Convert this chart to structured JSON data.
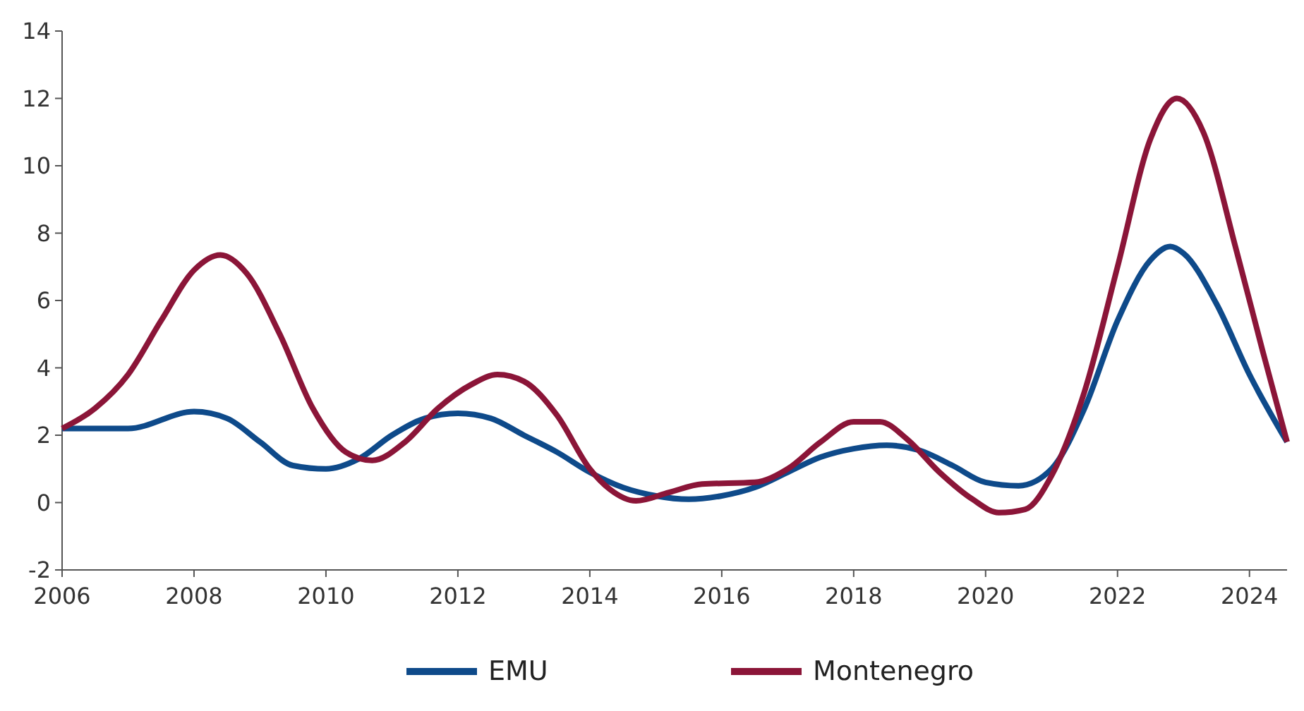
{
  "chart_data": {
    "type": "line",
    "xlim": [
      2006,
      2024.57
    ],
    "xticks": [
      2006,
      2008,
      2010,
      2012,
      2014,
      2016,
      2018,
      2020,
      2022,
      2024
    ],
    "ylim": [
      -2,
      14
    ],
    "yticks": [
      -2,
      0,
      2,
      4,
      6,
      8,
      10,
      12,
      14
    ],
    "grid": false,
    "legend": "bottom",
    "marker": "none",
    "line_style": "solid",
    "series": [
      {
        "name": "EMU",
        "color": "#0e4a8a",
        "x": [
          2006,
          2007,
          2008,
          2008.5,
          2009,
          2009.5,
          2010,
          2010.5,
          2011,
          2011.5,
          2012,
          2012.5,
          2013,
          2013.5,
          2014,
          2014.5,
          2015,
          2015.5,
          2016,
          2016.5,
          2017,
          2017.5,
          2018,
          2018.5,
          2019,
          2019.5,
          2020,
          2020.5,
          2021,
          2021.5,
          2022,
          2022.5,
          2022.8,
          2023,
          2023.5,
          2024,
          2024.57
        ],
        "values": [
          2.2,
          2.2,
          2.7,
          2.5,
          1.8,
          1.1,
          1.0,
          1.3,
          2.0,
          2.5,
          2.65,
          2.5,
          2.0,
          1.5,
          0.9,
          0.45,
          0.2,
          0.1,
          0.2,
          0.45,
          0.9,
          1.35,
          1.6,
          1.7,
          1.55,
          1.1,
          0.6,
          0.5,
          1.0,
          2.8,
          5.4,
          7.2,
          7.6,
          7.4,
          5.9,
          3.8,
          1.8
        ]
      },
      {
        "name": "Montenegro",
        "color": "#8b1538",
        "x": [
          2006,
          2006.5,
          2007,
          2007.5,
          2008,
          2008.4,
          2008.8,
          2009.3,
          2009.8,
          2010.3,
          2010.7,
          2011.2,
          2011.7,
          2012.2,
          2012.6,
          2013,
          2013.5,
          2014,
          2014.3,
          2014.7,
          2015.2,
          2015.7,
          2016.5,
          2017,
          2017.5,
          2018,
          2018.4,
          2018.8,
          2019.3,
          2019.8,
          2020.2,
          2020.6,
          2021,
          2021.5,
          2022,
          2022.5,
          2022.9,
          2023.3,
          2023.8,
          2024.2,
          2024.57
        ],
        "values": [
          2.2,
          2.8,
          3.8,
          5.4,
          6.9,
          7.35,
          6.8,
          5.0,
          2.8,
          1.5,
          1.25,
          1.8,
          2.8,
          3.5,
          3.8,
          3.6,
          2.6,
          1.0,
          0.4,
          0.05,
          0.3,
          0.55,
          0.6,
          1.0,
          1.8,
          2.4,
          2.4,
          1.9,
          0.9,
          0.1,
          -0.3,
          -0.2,
          0.8,
          3.3,
          7.0,
          10.8,
          12.0,
          11.0,
          7.5,
          4.5,
          1.8
        ]
      }
    ]
  }
}
